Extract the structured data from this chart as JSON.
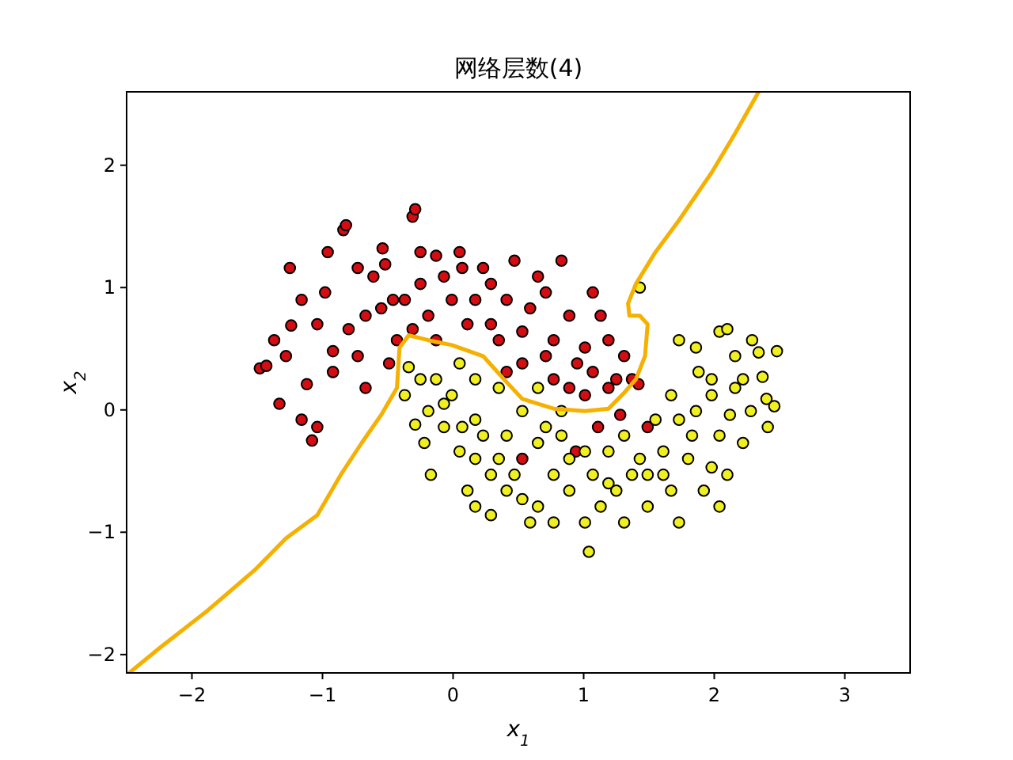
{
  "chart_data": {
    "type": "scatter",
    "title": "网络层数(4)",
    "xlabel": "x$_{1}$",
    "ylabel": "x$_{2}$",
    "xlim": [
      -2.5,
      3.5
    ],
    "ylim": [
      -2.15,
      2.6
    ],
    "xticks": [
      -2,
      -1,
      0,
      1,
      2,
      3
    ],
    "yticks": [
      -2,
      -1,
      0,
      1,
      2
    ],
    "marker": "circle",
    "series": [
      {
        "color": "#d40d12",
        "x": [
          -1.48,
          -1.43,
          -1.25,
          -1.24,
          -1.16,
          -1.12,
          -1.08,
          -0.98,
          -0.92,
          -0.84,
          -0.82,
          -0.8,
          -0.67,
          -0.61,
          -0.54,
          -0.52,
          -0.46,
          -0.31,
          -0.29,
          -0.43,
          -0.37,
          -0.25,
          -0.19,
          -0.13,
          -0.07,
          0.05,
          0.07,
          0.17,
          0.23,
          0.29,
          0.41,
          0.47,
          0.59,
          0.71,
          0.83,
          0.89,
          1.01,
          1.07,
          1.13,
          1.19,
          1.31,
          1.37,
          0.71,
          0.77,
          0.89,
          1.01,
          1.07,
          0.53,
          0.41,
          -1.16,
          -1.04,
          -1.33,
          -0.92,
          -0.73,
          -0.67,
          -0.96,
          -0.73,
          -0.55,
          -0.49,
          -1.04,
          -1.37,
          -1.28,
          -0.01,
          0.11,
          0.29,
          0.35,
          -0.25,
          0.53,
          0.65,
          0.77,
          0.95,
          1.19,
          1.25,
          1.42,
          1.11,
          1.28,
          1.49,
          0.53,
          0.94,
          -0.31,
          -0.13
        ],
        "values": [
          0.34,
          0.36,
          1.16,
          0.69,
          0.9,
          0.21,
          -0.25,
          0.96,
          0.48,
          1.47,
          1.51,
          0.66,
          0.77,
          1.09,
          1.32,
          1.19,
          0.9,
          1.58,
          1.64,
          0.57,
          0.9,
          1.03,
          0.77,
          1.26,
          1.09,
          1.29,
          1.16,
          0.9,
          1.16,
          1.03,
          0.9,
          1.22,
          0.83,
          0.96,
          1.22,
          0.77,
          0.51,
          0.96,
          0.77,
          0.57,
          0.44,
          0.25,
          0.44,
          0.25,
          0.18,
          0.12,
          0.31,
          0.38,
          0.31,
          -0.08,
          -0.14,
          0.05,
          0.31,
          0.44,
          0.18,
          1.29,
          1.16,
          0.83,
          0.38,
          0.7,
          0.57,
          0.44,
          0.9,
          0.7,
          0.7,
          0.57,
          1.29,
          0.64,
          1.09,
          0.57,
          0.38,
          0.18,
          0.25,
          0.21,
          -0.14,
          -0.04,
          -0.14,
          -0.4,
          -0.34,
          0.66,
          0.57
        ]
      },
      {
        "color": "#f0f020",
        "x": [
          1.43,
          1.73,
          1.86,
          2.04,
          2.1,
          2.16,
          2.22,
          2.28,
          2.4,
          2.46,
          2.37,
          2.34,
          1.98,
          1.86,
          1.73,
          1.61,
          1.8,
          1.98,
          2.1,
          2.22,
          2.04,
          1.92,
          1.67,
          1.49,
          1.37,
          1.31,
          1.13,
          1.01,
          0.89,
          0.77,
          0.65,
          0.59,
          0.41,
          0.29,
          0.17,
          0.05,
          -0.07,
          -0.19,
          -0.25,
          -0.34,
          -0.37,
          -0.29,
          -0.17,
          0.11,
          0.29,
          0.53,
          0.77,
          1.04,
          0.17,
          0.47,
          0.65,
          0.83,
          1.01,
          1.19,
          1.31,
          1.55,
          1.67,
          1.88,
          2.12,
          2.48,
          2.41,
          2.04,
          1.73,
          1.49,
          1.19,
          0.89,
          0.71,
          0.41,
          0.17,
          -0.01,
          -0.13,
          0.05,
          0.17,
          0.35,
          0.53,
          0.65,
          0.83,
          1.07,
          1.25,
          1.43,
          1.61,
          1.83,
          1.98,
          2.16,
          2.29,
          0.23,
          0.35,
          0.07,
          -0.07,
          -0.22
        ],
        "values": [
          1.0,
          0.57,
          0.51,
          0.64,
          0.66,
          0.44,
          0.25,
          -0.01,
          0.09,
          0.03,
          0.27,
          0.47,
          0.12,
          -0.01,
          -0.08,
          -0.34,
          -0.4,
          -0.47,
          -0.53,
          -0.27,
          -0.21,
          -0.66,
          -0.66,
          -0.79,
          -0.53,
          -0.92,
          -0.79,
          -0.92,
          -0.66,
          -0.53,
          -0.79,
          -0.92,
          -0.66,
          -0.53,
          -0.4,
          -0.34,
          -0.14,
          -0.01,
          0.25,
          0.35,
          0.12,
          -0.12,
          -0.53,
          -0.66,
          -0.86,
          -0.73,
          -0.92,
          -1.16,
          -0.79,
          -0.53,
          -0.27,
          -0.21,
          -0.34,
          -0.34,
          -0.21,
          -0.08,
          0.12,
          0.31,
          -0.04,
          0.48,
          -0.14,
          -0.79,
          -0.92,
          -0.53,
          -0.6,
          -0.4,
          -0.14,
          -0.21,
          -0.08,
          0.12,
          0.25,
          0.38,
          0.25,
          0.18,
          -0.01,
          0.18,
          -0.01,
          -0.53,
          -0.66,
          -0.4,
          -0.53,
          -0.21,
          0.25,
          0.18,
          0.57,
          -0.21,
          -0.4,
          -0.14,
          0.05,
          -0.27
        ]
      },
      {
        "type": "line",
        "marker": "none",
        "color": "#f5b000",
        "x": [
          -2.48,
          -2.24,
          -1.88,
          -1.52,
          -1.28,
          -1.04,
          -0.86,
          -0.7,
          -0.55,
          -0.43,
          -0.41,
          -0.34,
          -0.19,
          -0.01,
          0.23,
          0.39,
          0.53,
          0.77,
          1.01,
          1.19,
          1.31,
          1.4,
          1.47,
          1.49,
          1.43,
          1.35,
          1.34,
          1.4,
          1.55,
          1.73,
          1.98,
          2.16,
          2.34
        ],
        "values": [
          -2.15,
          -1.94,
          -1.64,
          -1.31,
          -1.05,
          -0.86,
          -0.53,
          -0.27,
          -0.04,
          0.18,
          0.51,
          0.61,
          0.57,
          0.53,
          0.44,
          0.25,
          0.09,
          0.01,
          -0.01,
          0.01,
          0.14,
          0.25,
          0.44,
          0.7,
          0.77,
          0.77,
          0.87,
          1.03,
          1.29,
          1.55,
          1.94,
          2.26,
          2.6
        ]
      }
    ]
  }
}
